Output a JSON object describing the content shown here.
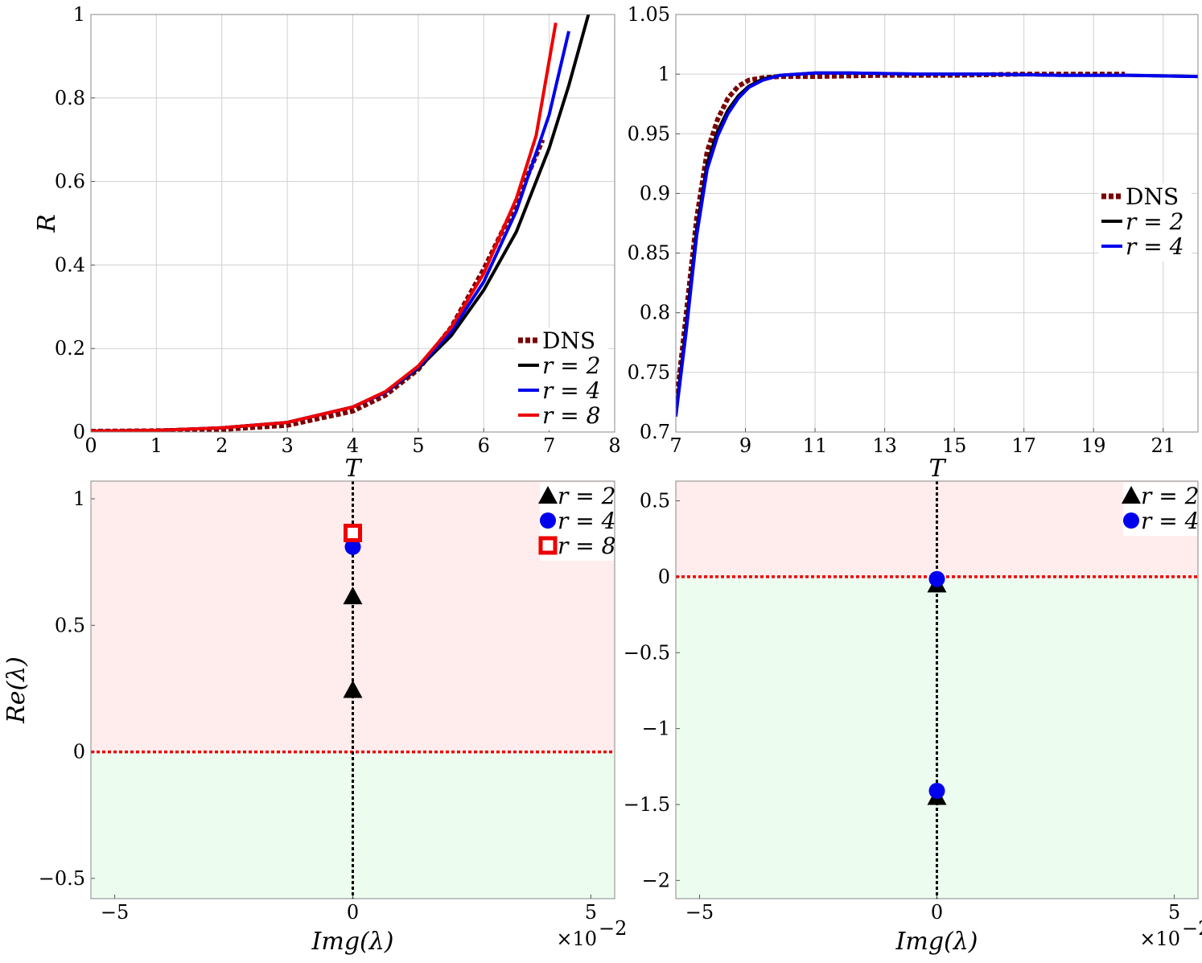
{
  "colors": {
    "dns": "#7a0000",
    "r2": "#000000",
    "r4": "#0000ee",
    "r8": "#ee0000",
    "unstable_bg": "#ffecec",
    "stable_bg": "#ecfcee",
    "zero_line": "#ee0000"
  },
  "chart_data": [
    {
      "type": "line",
      "title": "",
      "xlabel": "T",
      "ylabel": "R",
      "xlim": [
        0,
        8
      ],
      "ylim": [
        0,
        1
      ],
      "xticks": [
        0,
        1,
        2,
        3,
        4,
        5,
        6,
        7,
        8
      ],
      "xtick_labels": [
        "0",
        "1",
        "2",
        "3",
        "4",
        "5",
        "6",
        "7",
        "8"
      ],
      "yticks": [
        0,
        0.2,
        0.4,
        0.6,
        0.8,
        1
      ],
      "ytick_labels": [
        "0",
        "0.2",
        "0.4",
        "0.6",
        "0.8",
        "1"
      ],
      "grid": true,
      "legend": "bottom-right",
      "legend_labels": [
        "DNS",
        "r = 2",
        "r = 4",
        "r = 8"
      ],
      "series": [
        {
          "name": "DNS",
          "style": "dashed",
          "x": [
            0,
            1,
            2,
            3,
            4,
            4.5,
            5,
            5.5,
            6,
            6.5,
            6.9
          ],
          "y": [
            0.002,
            0.003,
            0.006,
            0.016,
            0.05,
            0.088,
            0.15,
            0.25,
            0.39,
            0.55,
            0.7
          ]
        },
        {
          "name": "r = 2",
          "style": "solid",
          "x": [
            0,
            1,
            2,
            3,
            4,
            4.5,
            5,
            5.5,
            6,
            6.5,
            7,
            7.3,
            7.6
          ],
          "y": [
            0.002,
            0.004,
            0.01,
            0.023,
            0.06,
            0.095,
            0.152,
            0.23,
            0.34,
            0.48,
            0.68,
            0.83,
            1.0
          ]
        },
        {
          "name": "r = 4",
          "style": "solid",
          "x": [
            0,
            1,
            2,
            3,
            4,
            4.5,
            5,
            5.5,
            6,
            6.5,
            7,
            7.3
          ],
          "y": [
            0.002,
            0.004,
            0.01,
            0.023,
            0.06,
            0.095,
            0.155,
            0.24,
            0.36,
            0.53,
            0.76,
            0.96
          ]
        },
        {
          "name": "r = 8",
          "style": "solid",
          "x": [
            0,
            1,
            2,
            3,
            4,
            4.5,
            5,
            5.5,
            6,
            6.5,
            6.8,
            7.1
          ],
          "y": [
            0.002,
            0.004,
            0.01,
            0.023,
            0.06,
            0.097,
            0.158,
            0.25,
            0.38,
            0.56,
            0.71,
            0.98
          ]
        }
      ]
    },
    {
      "type": "line",
      "title": "",
      "xlabel": "T",
      "ylabel": "",
      "xlim": [
        7,
        22
      ],
      "ylim": [
        0.7,
        1.05
      ],
      "xticks": [
        7,
        9,
        11,
        13,
        15,
        17,
        19,
        21
      ],
      "xtick_labels": [
        "7",
        "9",
        "11",
        "13",
        "15",
        "17",
        "19",
        "21"
      ],
      "yticks": [
        0.7,
        0.75,
        0.8,
        0.85,
        0.9,
        0.95,
        1,
        1.05
      ],
      "ytick_labels": [
        "0.7",
        "0.75",
        "0.8",
        "0.85",
        "0.9",
        "0.95",
        "1",
        "1.05"
      ],
      "grid": true,
      "legend": "center-right",
      "legend_labels": [
        "DNS",
        "r = 2",
        "r = 4"
      ],
      "series": [
        {
          "name": "DNS",
          "style": "dashed",
          "x": [
            7,
            7.3,
            7.6,
            7.9,
            8.2,
            8.5,
            8.8,
            9.1,
            9.5,
            10,
            11,
            13,
            15,
            17,
            19,
            19.9
          ],
          "y": [
            0.72,
            0.8,
            0.88,
            0.935,
            0.962,
            0.98,
            0.99,
            0.995,
            0.997,
            0.998,
            0.998,
            0.999,
            0.999,
            1.0,
            1.0,
            1.0
          ]
        },
        {
          "name": "r = 2",
          "style": "solid",
          "x": [
            7,
            7.3,
            7.6,
            7.9,
            8.2,
            8.5,
            8.8,
            9.1,
            9.5,
            10,
            11,
            12,
            14,
            16,
            18,
            20,
            22
          ],
          "y": [
            0.715,
            0.79,
            0.87,
            0.925,
            0.952,
            0.97,
            0.982,
            0.99,
            0.996,
            0.999,
            1.001,
            1.001,
            1.0,
            1.0,
            0.999,
            0.999,
            0.998
          ]
        },
        {
          "name": "r = 4",
          "style": "solid",
          "x": [
            7,
            7.3,
            7.6,
            7.9,
            8.2,
            8.5,
            8.8,
            9.1,
            9.5,
            10,
            11,
            12,
            14,
            16,
            18,
            20,
            22
          ],
          "y": [
            0.713,
            0.785,
            0.865,
            0.92,
            0.948,
            0.967,
            0.98,
            0.989,
            0.995,
            0.999,
            1.001,
            1.001,
            1.0,
            1.0,
            0.999,
            0.999,
            0.998
          ]
        }
      ]
    },
    {
      "type": "scatter",
      "title": "",
      "xlabel": "Img(λ)",
      "ylabel": "Re(λ)",
      "x_multiplier": "×10",
      "x_multiplier_exp": "−2",
      "xlim": [
        -5.5,
        5.5
      ],
      "ylim": [
        -0.58,
        1.07
      ],
      "xticks": [
        -5,
        0,
        5
      ],
      "xtick_labels": [
        "−5",
        "0",
        "5"
      ],
      "yticks": [
        -0.5,
        0,
        0.5,
        1
      ],
      "ytick_labels": [
        "−0.5",
        "0",
        "0.5",
        "1"
      ],
      "grid": false,
      "legend": "top-right",
      "legend_labels": [
        "r = 2",
        "r = 4",
        "r = 8"
      ],
      "series": [
        {
          "name": "r = 2",
          "marker": "triangle",
          "x": [
            0,
            0
          ],
          "y": [
            0.615,
            0.245
          ]
        },
        {
          "name": "r = 4",
          "marker": "circle",
          "x": [
            0
          ],
          "y": [
            0.81
          ]
        },
        {
          "name": "r = 8",
          "marker": "square",
          "x": [
            0
          ],
          "y": [
            0.865
          ]
        }
      ]
    },
    {
      "type": "scatter",
      "title": "",
      "xlabel": "Img(λ)",
      "ylabel": "",
      "x_multiplier": "×10",
      "x_multiplier_exp": "−2",
      "xlim": [
        -5.5,
        5.5
      ],
      "ylim": [
        -2.12,
        0.63
      ],
      "xticks": [
        -5,
        0,
        5
      ],
      "xtick_labels": [
        "−5",
        "0",
        "5"
      ],
      "yticks": [
        -2,
        -1.5,
        -1,
        -0.5,
        0,
        0.5
      ],
      "ytick_labels": [
        "−2",
        "−1.5",
        "−1",
        "−0.5",
        "0",
        "0.5"
      ],
      "grid": false,
      "legend": "top-right",
      "legend_labels": [
        "r = 2",
        "r = 4"
      ],
      "series": [
        {
          "name": "r = 2",
          "marker": "triangle",
          "x": [
            0,
            0
          ],
          "y": [
            -0.05,
            -1.45
          ]
        },
        {
          "name": "r = 4",
          "marker": "circle",
          "x": [
            0,
            0
          ],
          "y": [
            -0.015,
            -1.41
          ]
        }
      ]
    }
  ]
}
